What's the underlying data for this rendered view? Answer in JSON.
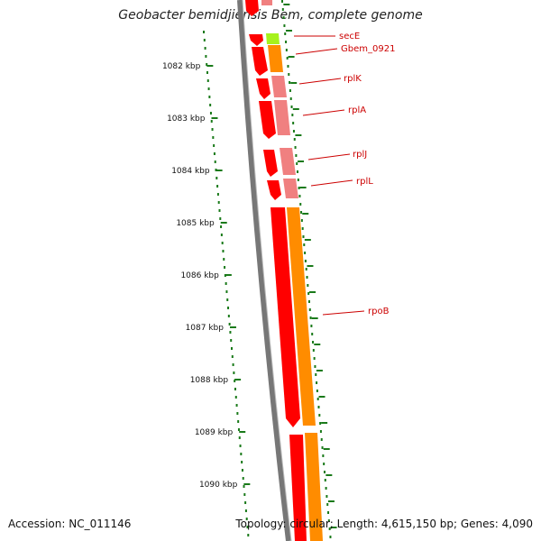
{
  "title": "Geobacter bemidjiensis Bem, complete genome",
  "accession": "Accession: NC_011146",
  "summary": "Topology: circular; Length: 4,615,150 bp; Genes: 4,090",
  "ticks": [
    "1082 kbp",
    "1083 kbp",
    "1084 kbp",
    "1085 kbp",
    "1086 kbp",
    "1087 kbp",
    "1088 kbp",
    "1089 kbp",
    "1090 kbp"
  ],
  "genes": [
    "secE",
    "Gbem_0921",
    "rplK",
    "rplA",
    "rplJ",
    "rplL",
    "rpoB"
  ],
  "colors": {
    "backbone": "#777777",
    "cds": "#ff0000",
    "gene": "#ff8c00",
    "rna_light": "#f08080",
    "misc": "#a6f21c",
    "tick": "#1a7a1a",
    "label": "#cc0000"
  }
}
